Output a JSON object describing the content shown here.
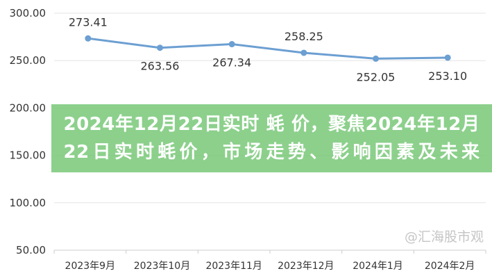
{
  "chart_data": {
    "type": "line",
    "categories": [
      "2023年9月",
      "2023年10月",
      "2023年11月",
      "2023年12月",
      "2024年1月",
      "2024年2月"
    ],
    "series": [
      {
        "values": [
          273.41,
          263.56,
          267.34,
          258.25,
          252.05,
          253.1
        ]
      }
    ],
    "data_labels": [
      "273.41",
      "263.56",
      "267.34",
      "258.25",
      "252.05",
      "253.10"
    ],
    "y_ticks": [
      "50.00",
      "100.00",
      "150.00",
      "200.00",
      "250.00",
      "300.00"
    ],
    "ylim": [
      50,
      300
    ],
    "grid": true,
    "line_color": "#6c9fd2"
  },
  "banner": {
    "title": "2024年12月22日实时 蚝 价，聚焦2024年12月22日实时蚝价，市场走势、影响因素及未来"
  },
  "watermark": "@汇海股市观"
}
